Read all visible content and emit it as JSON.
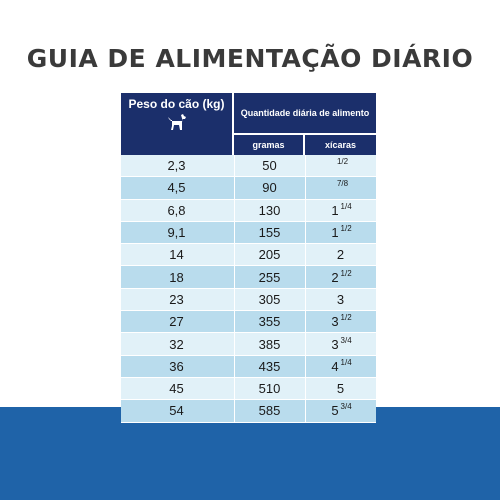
{
  "title": "GUIA DE ALIMENTAÇÃO DIÁRIO",
  "table": {
    "weight_header": "Peso do cão (kg)",
    "amount_header": "Quantidade diária de alimento",
    "grams_header": "gramas",
    "cups_header": "xícaras",
    "icon": "dog-icon",
    "colors": {
      "header": "#1b2f6b",
      "row_light": "#e1f1f8",
      "row_dark": "#b9dced",
      "bottom_bar": "#1f63a8"
    },
    "rows": [
      {
        "weight": "2,3",
        "grams": "50",
        "cups_whole": "",
        "cups_frac": "1/2"
      },
      {
        "weight": "4,5",
        "grams": "90",
        "cups_whole": "",
        "cups_frac": "7/8"
      },
      {
        "weight": "6,8",
        "grams": "130",
        "cups_whole": "1",
        "cups_frac": "1/4"
      },
      {
        "weight": "9,1",
        "grams": "155",
        "cups_whole": "1",
        "cups_frac": "1/2"
      },
      {
        "weight": "14",
        "grams": "205",
        "cups_whole": "2",
        "cups_frac": ""
      },
      {
        "weight": "18",
        "grams": "255",
        "cups_whole": "2",
        "cups_frac": "1/2"
      },
      {
        "weight": "23",
        "grams": "305",
        "cups_whole": "3",
        "cups_frac": ""
      },
      {
        "weight": "27",
        "grams": "355",
        "cups_whole": "3",
        "cups_frac": "1/2"
      },
      {
        "weight": "32",
        "grams": "385",
        "cups_whole": "3",
        "cups_frac": "3/4"
      },
      {
        "weight": "36",
        "grams": "435",
        "cups_whole": "4",
        "cups_frac": "1/4"
      },
      {
        "weight": "45",
        "grams": "510",
        "cups_whole": "5",
        "cups_frac": ""
      },
      {
        "weight": "54",
        "grams": "585",
        "cups_whole": "5",
        "cups_frac": "3/4"
      }
    ]
  }
}
